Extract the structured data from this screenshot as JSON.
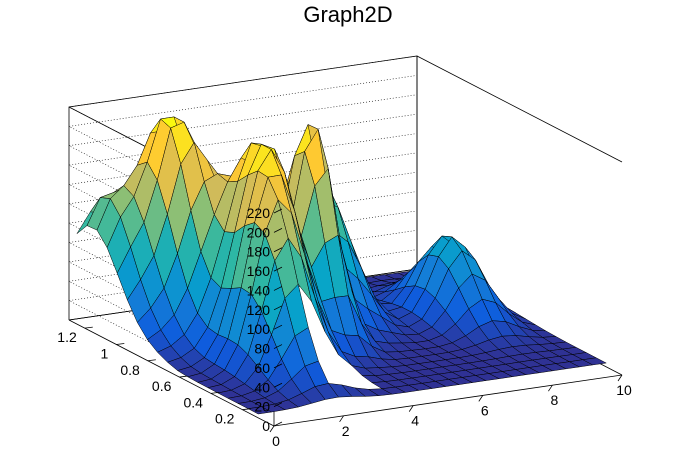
{
  "chart_data": {
    "type": "surface",
    "title": "Graph2D",
    "xlabel": "",
    "ylabel": "",
    "zlabel": "",
    "xlim": [
      0,
      10
    ],
    "ylim": [
      0,
      1.3
    ],
    "zlim": [
      0,
      220
    ],
    "x_ticks": [
      "0",
      "2",
      "4",
      "6",
      "8",
      "10"
    ],
    "y_ticks": [
      "0.2",
      "0.4",
      "0.6",
      "0.8",
      "1",
      "1.2"
    ],
    "z_ticks": [
      "0",
      "20",
      "40",
      "60",
      "80",
      "100",
      "120",
      "140",
      "160",
      "180",
      "200",
      "220"
    ],
    "grid": true,
    "colormap": [
      "#352a87",
      "#0f5cdd",
      "#1481d6",
      "#06a4ca",
      "#2eb7a4",
      "#87bf77",
      "#d1bb59",
      "#fec832",
      "#f9fb0e"
    ],
    "peaks": [
      {
        "x": 4.5,
        "y": 0.75,
        "z": 205
      },
      {
        "x": 1.8,
        "y": 1.05,
        "z": 195
      },
      {
        "x": 3.0,
        "y": 0.7,
        "z": 170
      },
      {
        "x": 0.4,
        "y": 1.15,
        "z": 110
      },
      {
        "x": 2.2,
        "y": 0.5,
        "z": 145
      },
      {
        "x": 5.6,
        "y": 0.95,
        "z": 140
      },
      {
        "x": 8.5,
        "y": 0.75,
        "z": 85
      }
    ],
    "notes_gap": {
      "x_range": [
        2.2,
        4.0
      ],
      "y_range": [
        0.15,
        0.35
      ]
    }
  }
}
